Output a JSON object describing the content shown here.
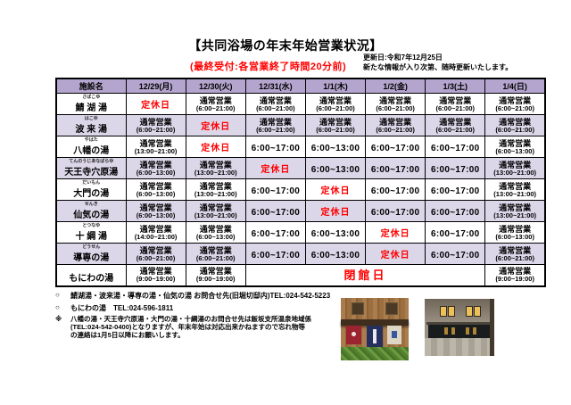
{
  "header": {
    "title": "【共同浴場の年末年始営業状況】",
    "subtitle_red": "(最終受付:各営業終了時間20分前)",
    "update_line1": "更新日:令和7年12月25日",
    "update_line2": "新たな情報が入り次第、随時更新いたします。"
  },
  "colors": {
    "header_bg": "#b4a5ce",
    "row_alt_bg": "#dcd6e9",
    "alert_red": "#ff0000"
  },
  "table": {
    "headers": [
      "施設名",
      "12/29(月)",
      "12/30(火)",
      "12/31(水)",
      "1/1(木)",
      "1/2(金)",
      "1/3(土)",
      "1/4(日)"
    ],
    "labels": {
      "regular": "通常営業",
      "closed": "定休日",
      "shut": "閉館日"
    },
    "rows": [
      {
        "name": "鯖 湖 湯",
        "furigana": "さばこゆ",
        "cells": [
          {
            "type": "closed"
          },
          {
            "type": "regular",
            "time": "(6:00~21:00)"
          },
          {
            "type": "regular",
            "time": "(6:00~21:00)"
          },
          {
            "type": "regular",
            "time": "(6:00~21:00)"
          },
          {
            "type": "regular",
            "time": "(6:00~21:00)"
          },
          {
            "type": "regular",
            "time": "(6:00~21:00)"
          },
          {
            "type": "regular",
            "time": "(6:00~21:00)"
          }
        ]
      },
      {
        "name": "波 来 湯",
        "furigana": "はこゆ",
        "cells": [
          {
            "type": "regular",
            "time": "(6:00~21:00)"
          },
          {
            "type": "closed"
          },
          {
            "type": "regular",
            "time": "(6:00~21:00)"
          },
          {
            "type": "regular",
            "time": "(6:00~21:00)"
          },
          {
            "type": "regular",
            "time": "(6:00~21:00)"
          },
          {
            "type": "regular",
            "time": "(6:00~21:00)"
          },
          {
            "type": "regular",
            "time": "(6:00~21:00)"
          }
        ]
      },
      {
        "name": "八幡の湯",
        "furigana": "やはた",
        "cells": [
          {
            "type": "regular",
            "time": "(13:00~21:00)"
          },
          {
            "type": "closed"
          },
          {
            "type": "time",
            "text": "6:00~17:00"
          },
          {
            "type": "time",
            "text": "6:00~13:00"
          },
          {
            "type": "time",
            "text": "6:00~17:00"
          },
          {
            "type": "time",
            "text": "6:00~17:00"
          },
          {
            "type": "regular",
            "time": "(6:00~13:00)"
          }
        ]
      },
      {
        "name": "天王寺穴原湯",
        "furigana": "てんのうじあなばらゆ",
        "cells": [
          {
            "type": "regular",
            "time": "(6:00~13:00)"
          },
          {
            "type": "regular",
            "time": "(13:00~21:00)"
          },
          {
            "type": "closed"
          },
          {
            "type": "time",
            "text": "6:00~13:00"
          },
          {
            "type": "time",
            "text": "6:00~17:00"
          },
          {
            "type": "time",
            "text": "6:00~17:00"
          },
          {
            "type": "regular",
            "time": "(13:00~21:00)"
          }
        ]
      },
      {
        "name": "大門の湯",
        "furigana": "だいもん",
        "cells": [
          {
            "type": "regular",
            "time": "(6:00~13:00)"
          },
          {
            "type": "regular",
            "time": "(13:00~21:00)"
          },
          {
            "type": "time",
            "text": "6:00~17:00"
          },
          {
            "type": "closed"
          },
          {
            "type": "time",
            "text": "6:00~17:00"
          },
          {
            "type": "time",
            "text": "6:00~17:00"
          },
          {
            "type": "regular",
            "time": "(13:00~21:00)"
          }
        ]
      },
      {
        "name": "仙気の湯",
        "furigana": "せんき",
        "cells": [
          {
            "type": "regular",
            "time": "(6:00~13:00)"
          },
          {
            "type": "regular",
            "time": "(13:00~21:00)"
          },
          {
            "type": "time",
            "text": "6:00~17:00"
          },
          {
            "type": "closed"
          },
          {
            "type": "time",
            "text": "6:00~17:00"
          },
          {
            "type": "time",
            "text": "6:00~17:00"
          },
          {
            "type": "regular",
            "time": "(13:00~21:00)"
          }
        ]
      },
      {
        "name": "十 綱 湯",
        "furigana": "とつなゆ",
        "cells": [
          {
            "type": "regular",
            "time": "(14:00~21:00)"
          },
          {
            "type": "regular",
            "time": "(6:00~13:00)"
          },
          {
            "type": "time",
            "text": "6:00~17:00"
          },
          {
            "type": "time",
            "text": "6:00~13:00"
          },
          {
            "type": "closed"
          },
          {
            "type": "time",
            "text": "6:00~17:00"
          },
          {
            "type": "regular",
            "time": "(6:00~13:00)"
          }
        ]
      },
      {
        "name": "導専の湯",
        "furigana": "どうせん",
        "cells": [
          {
            "type": "regular",
            "time": "(6:00~21:00)"
          },
          {
            "type": "regular",
            "time": "(6:00~21:00)"
          },
          {
            "type": "time",
            "text": "6:00~17:00"
          },
          {
            "type": "time",
            "text": "6:00~13:00"
          },
          {
            "type": "closed"
          },
          {
            "type": "time",
            "text": "6:00~17:00"
          },
          {
            "type": "regular",
            "time": "(6:00~21:00)"
          }
        ]
      },
      {
        "name": "もにわの湯",
        "furigana": "",
        "cells": [
          {
            "type": "regular",
            "time": "(9:00~19:00)"
          },
          {
            "type": "regular",
            "time": "(9:00~19:00)"
          },
          {
            "type": "shut",
            "span": 4
          },
          {
            "type": "regular",
            "time": "(9:00~19:00)"
          }
        ]
      }
    ]
  },
  "notes": [
    {
      "marker": "○",
      "lines": [
        "鯖湖湯・波来湯・導専の湯・仙気の湯 お問合せ先(旧堀切邸内)TEL:024-542-5223"
      ]
    },
    {
      "marker": "○",
      "lines": [
        "もにわの湯　TEL:024-596-1811"
      ]
    },
    {
      "marker": "※",
      "lines": [
        "八幡の湯・天王寺穴原湯・大門の湯・十綱湯のお問合せ先は飯坂支所温泉地域係",
        "(TEL:024-542-0400)となりますが、年末年始は対応出来かねますので忘れ物等",
        "の連絡は1月5日以降にお願いします。"
      ]
    }
  ],
  "photos": {
    "left": "bathhouse-exterior-photo",
    "right": "bath-interior-photo"
  }
}
